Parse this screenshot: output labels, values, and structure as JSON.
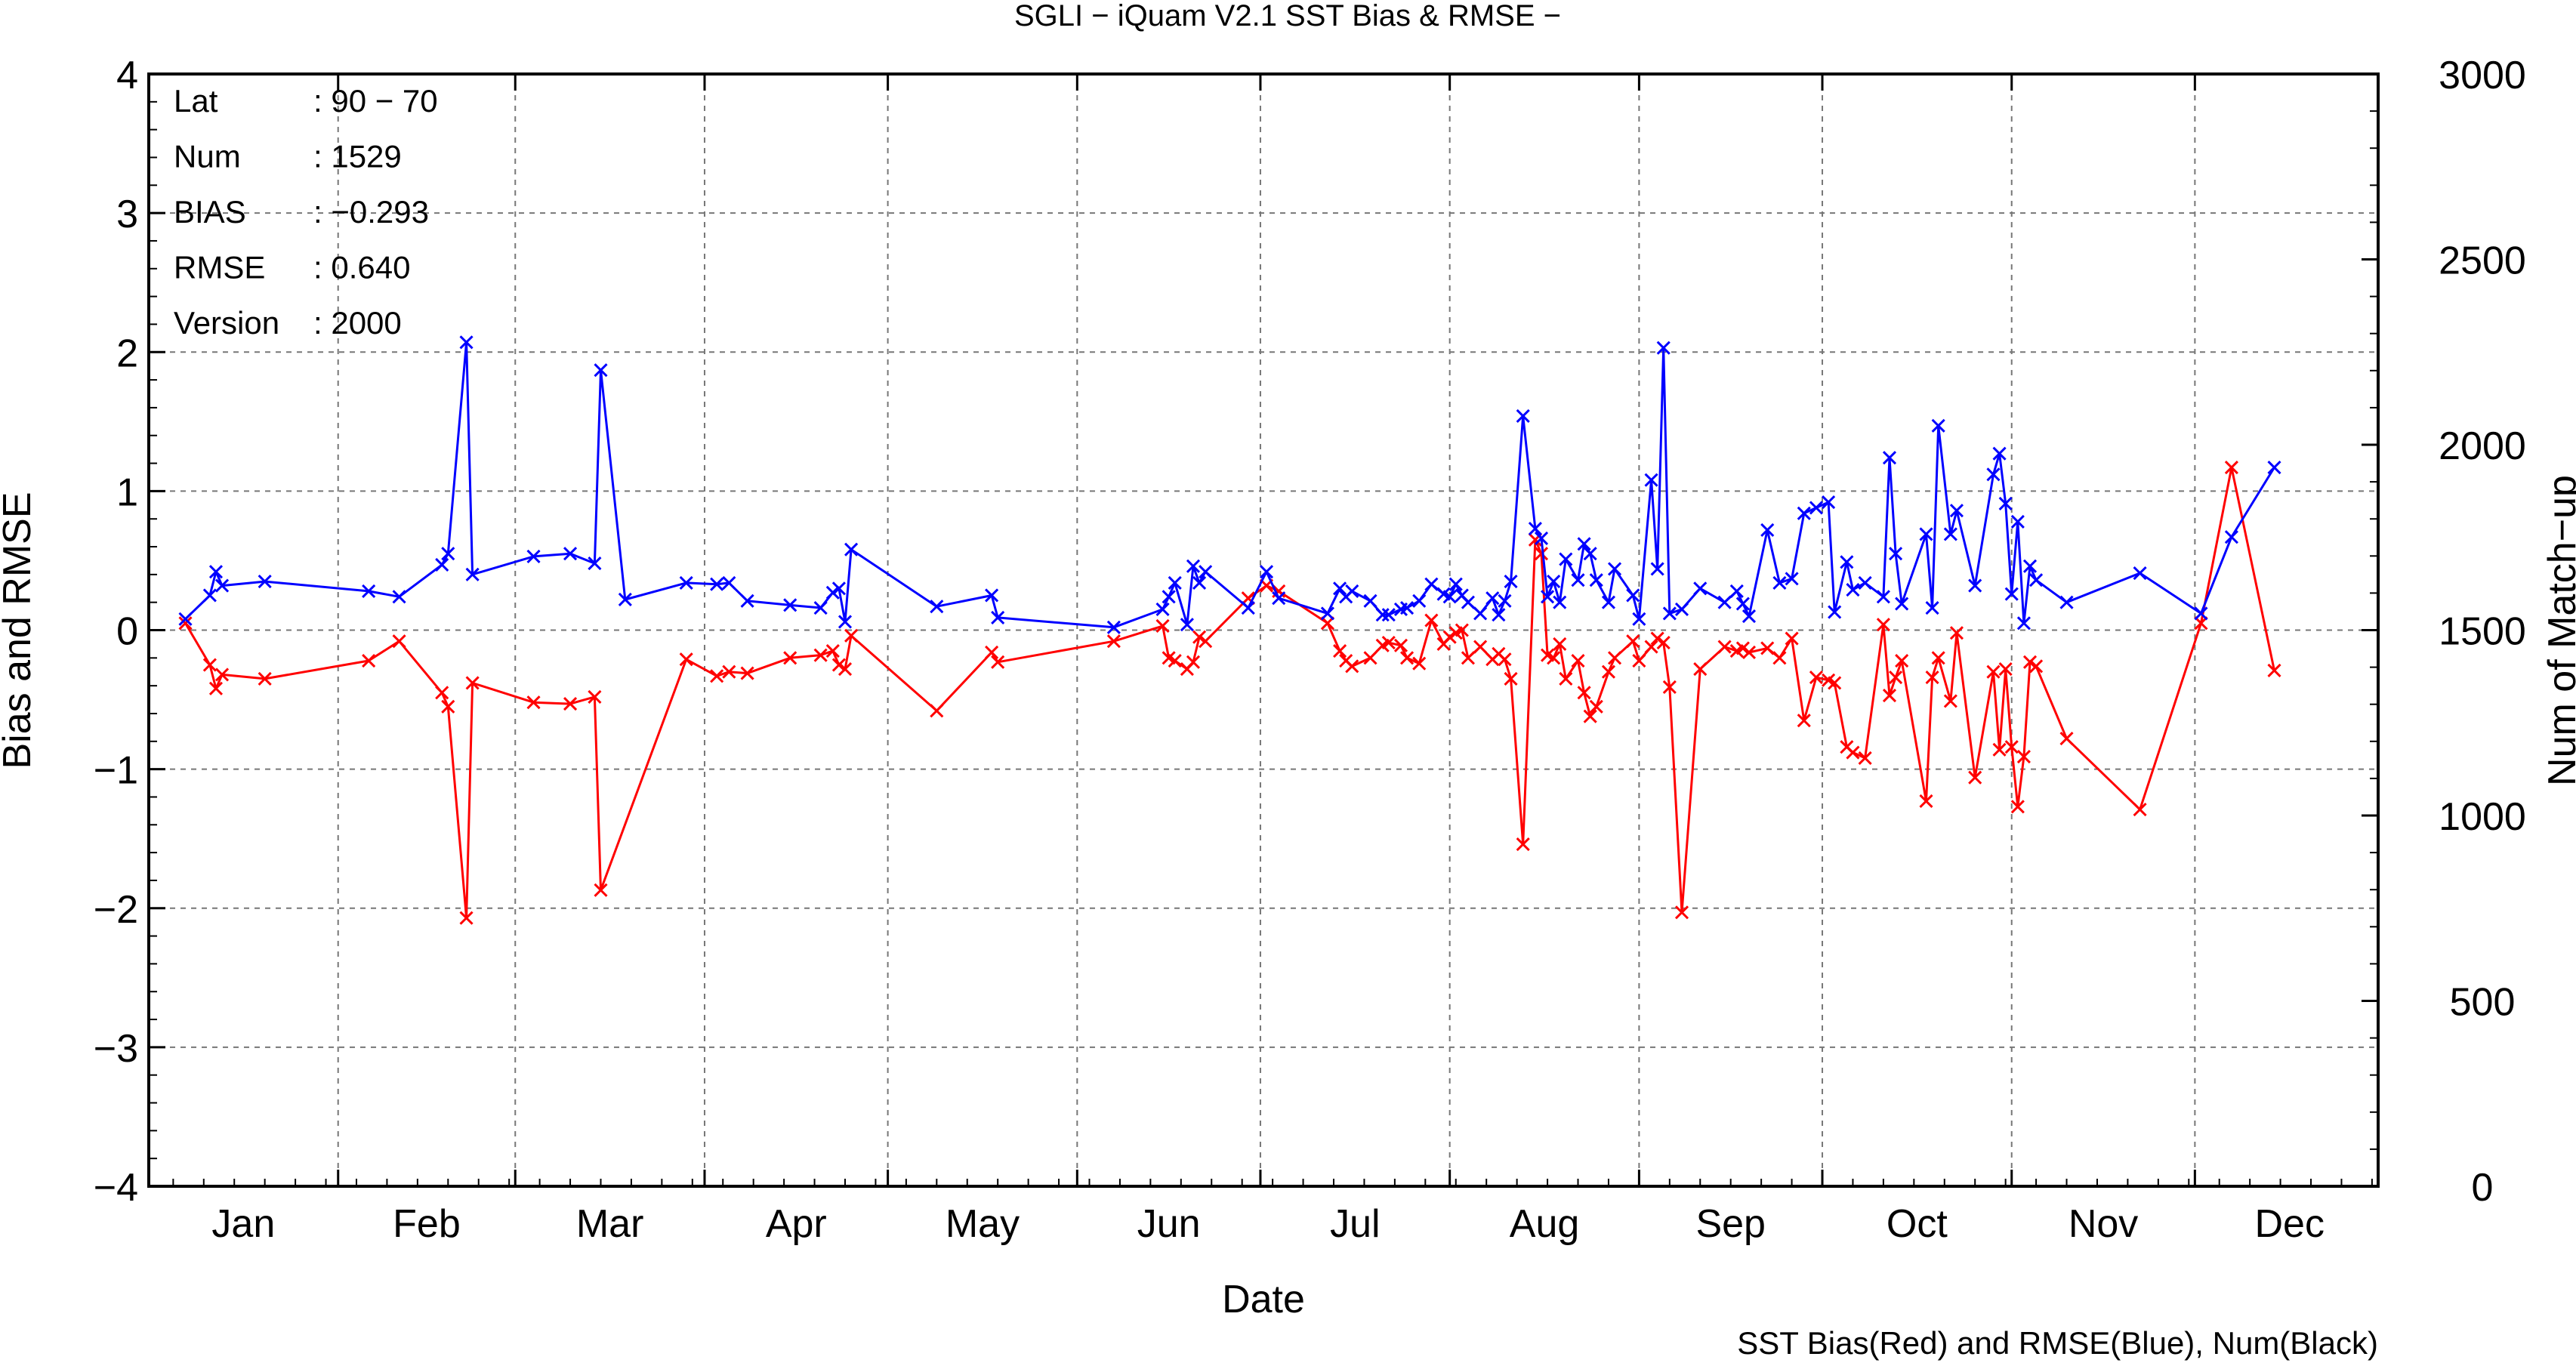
{
  "chart_data": {
    "type": "line",
    "title": "SGLI − iQuam V2.1 SST Bias & RMSE  −",
    "xlabel": "Date",
    "ylabel": "Bias and RMSE",
    "y2label": "Num of Match−up",
    "caption": "SST Bias(Red) and RMSE(Blue), Num(Black)",
    "x_unit": "day of year",
    "xlim": [
      1,
      366
    ],
    "ylim": [
      -4,
      4
    ],
    "y2lim": [
      0,
      3000
    ],
    "grid": true,
    "legend_placement": "bottom-right",
    "months": [
      "Jan",
      "Feb",
      "Mar",
      "Apr",
      "May",
      "Jun",
      "Jul",
      "Aug",
      "Sep",
      "Oct",
      "Nov",
      "Dec"
    ],
    "yticks": [
      4,
      3,
      2,
      1,
      0,
      -1,
      -2,
      -3,
      -4
    ],
    "ytick_labels": [
      "4",
      "3",
      "2",
      "1",
      "0",
      "−1",
      "−2",
      "−3",
      "−4"
    ],
    "y2ticks": [
      3000,
      2500,
      2000,
      1500,
      1000,
      500,
      0
    ],
    "y2tick_labels": [
      "3000",
      "2500",
      "2000",
      "1500",
      "1000",
      "500",
      "0"
    ],
    "stats": [
      {
        "key": "Lat",
        "value": ": 90 − 70"
      },
      {
        "key": "Num",
        "value": ": 1529"
      },
      {
        "key": "BIAS",
        "value": ": −0.293"
      },
      {
        "key": "RMSE",
        "value": ": 0.640"
      },
      {
        "key": "Version",
        "value": ": 2000"
      }
    ],
    "series": [
      {
        "name": "SST Bias",
        "color": "#ff0000",
        "axis": "left",
        "x": [
          7,
          11,
          12,
          13,
          20,
          37,
          42,
          49,
          50,
          53,
          54,
          64,
          70,
          74,
          75,
          89,
          94,
          96,
          99,
          106,
          111,
          113,
          114,
          115,
          116,
          130,
          139,
          140,
          159,
          167,
          168,
          169,
          171,
          172,
          173,
          174,
          181,
          184,
          186,
          194,
          196,
          197,
          198,
          201,
          203,
          204,
          206,
          207,
          209,
          211,
          213,
          214,
          215,
          216,
          217,
          219,
          221,
          222,
          223,
          224,
          226,
          228,
          229,
          230,
          231,
          232,
          233,
          235,
          236,
          237,
          238,
          240,
          241,
          244,
          245,
          247,
          248,
          249,
          250,
          252,
          255,
          259,
          261,
          262,
          263,
          266,
          268,
          270,
          272,
          274,
          276,
          277,
          279,
          280,
          282,
          285,
          286,
          287,
          288,
          292,
          293,
          294,
          296,
          297,
          300,
          303,
          304,
          305,
          306,
          307,
          308,
          309,
          310,
          315,
          327,
          337,
          342,
          349
        ],
        "y": [
          0.05,
          -0.25,
          -0.42,
          -0.32,
          -0.35,
          -0.22,
          -0.08,
          -0.45,
          -0.55,
          -2.07,
          -0.38,
          -0.52,
          -0.53,
          -0.48,
          -1.87,
          -0.21,
          -0.33,
          -0.3,
          -0.31,
          -0.2,
          -0.18,
          -0.15,
          -0.25,
          -0.28,
          -0.04,
          -0.58,
          -0.16,
          -0.23,
          -0.08,
          0.03,
          -0.2,
          -0.22,
          -0.28,
          -0.23,
          -0.05,
          -0.08,
          0.23,
          0.32,
          0.28,
          0.05,
          -0.15,
          -0.22,
          -0.26,
          -0.2,
          -0.11,
          -0.09,
          -0.11,
          -0.2,
          -0.24,
          0.07,
          -0.1,
          -0.05,
          -0.02,
          0.0,
          -0.2,
          -0.12,
          -0.21,
          -0.17,
          -0.21,
          -0.35,
          -1.54,
          0.65,
          0.55,
          -0.18,
          -0.2,
          -0.1,
          -0.35,
          -0.22,
          -0.45,
          -0.62,
          -0.55,
          -0.3,
          -0.2,
          -0.08,
          -0.22,
          -0.12,
          -0.06,
          -0.09,
          -0.41,
          -2.03,
          -0.28,
          -0.12,
          -0.15,
          -0.13,
          -0.16,
          -0.13,
          -0.2,
          -0.06,
          -0.65,
          -0.34,
          -0.36,
          -0.38,
          -0.84,
          -0.88,
          -0.92,
          0.04,
          -0.47,
          -0.34,
          -0.22,
          -1.23,
          -0.34,
          -0.2,
          -0.51,
          -0.02,
          -1.06,
          -0.3,
          -0.86,
          -0.28,
          -0.84,
          -1.27,
          -0.91,
          -0.23,
          -0.26,
          -0.78,
          -1.29,
          0.05,
          1.17,
          -0.29
        ],
        "note": "x values approximated by day-of-year"
      },
      {
        "name": "SST RMSE",
        "color": "#0000ff",
        "axis": "left",
        "x": [
          7,
          11,
          12,
          13,
          20,
          37,
          42,
          49,
          50,
          53,
          54,
          64,
          70,
          74,
          75,
          79,
          89,
          94,
          96,
          99,
          106,
          111,
          113,
          114,
          115,
          116,
          130,
          139,
          140,
          159,
          167,
          168,
          169,
          171,
          172,
          173,
          174,
          181,
          184,
          186,
          194,
          196,
          197,
          198,
          201,
          203,
          204,
          206,
          207,
          209,
          211,
          213,
          214,
          215,
          216,
          217,
          219,
          221,
          222,
          223,
          224,
          226,
          228,
          229,
          230,
          231,
          232,
          233,
          235,
          236,
          237,
          238,
          240,
          241,
          244,
          245,
          247,
          248,
          249,
          250,
          252,
          255,
          259,
          261,
          262,
          263,
          266,
          268,
          270,
          272,
          274,
          276,
          277,
          279,
          280,
          282,
          285,
          286,
          287,
          288,
          292,
          293,
          294,
          296,
          297,
          300,
          303,
          304,
          305,
          306,
          307,
          308,
          309,
          310,
          315,
          327,
          337,
          342,
          349
        ],
        "y": [
          0.08,
          0.25,
          0.42,
          0.32,
          0.35,
          0.28,
          0.24,
          0.47,
          0.55,
          2.07,
          0.4,
          0.53,
          0.55,
          0.48,
          1.87,
          0.22,
          0.34,
          0.33,
          0.34,
          0.21,
          0.18,
          0.16,
          0.27,
          0.3,
          0.06,
          0.58,
          0.17,
          0.25,
          0.09,
          0.02,
          0.15,
          0.24,
          0.34,
          0.04,
          0.46,
          0.34,
          0.42,
          0.16,
          0.42,
          0.23,
          0.12,
          0.3,
          0.24,
          0.28,
          0.21,
          0.11,
          0.11,
          0.15,
          0.16,
          0.21,
          0.33,
          0.26,
          0.24,
          0.33,
          0.25,
          0.2,
          0.12,
          0.23,
          0.11,
          0.21,
          0.35,
          1.54,
          0.73,
          0.66,
          0.24,
          0.35,
          0.2,
          0.51,
          0.36,
          0.62,
          0.55,
          0.36,
          0.2,
          0.44,
          0.25,
          0.08,
          1.08,
          0.44,
          2.03,
          0.12,
          0.15,
          0.3,
          0.2,
          0.28,
          0.19,
          0.1,
          0.72,
          0.34,
          0.37,
          0.84,
          0.88,
          0.92,
          0.13,
          0.49,
          0.29,
          0.34,
          0.24,
          1.24,
          0.55,
          0.19,
          0.69,
          0.16,
          1.47,
          0.69,
          0.86,
          0.32,
          1.12,
          1.27,
          0.91,
          0.26,
          0.78,
          0.05,
          0.46,
          0.36,
          0.2,
          0.41,
          0.12,
          0.67,
          1.17
        ],
        "note": "x values approximated by day-of-year"
      }
    ]
  }
}
